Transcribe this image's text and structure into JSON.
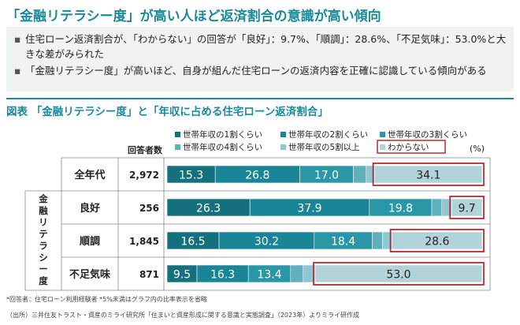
{
  "title": "「金融リテラシー度」が高い人ほど返済割合の意識が高い傾向",
  "bullets": [
    "住宅ローン返済割合が、「わからない」の回答が「良好」：9.7%、「順調」：28.6%、「不足気味」：53.0%と大きな差がみられた",
    "「金融リテラシー度」が高いほど、自身が組んだ住宅ローンの返済内容を正確に認識している傾向がある"
  ],
  "chart_title": "図表 「金融リテラシー度」と「年収に占める住宅ローン返済割合」",
  "footnote": "*回答者：住宅ローン利用経験者 *5%未満はグラフ内の比率表示を省略",
  "source": "（出所）三井住友トラスト・資産のミライ研究所「住まいと資産形成に関する意識と実態調査」（2023年）よりミライ研作成",
  "chart_data": {
    "type": "bar",
    "stacked": true,
    "orientation": "horizontal",
    "unit": "(%)",
    "respondents_header": "回答者数",
    "group_label": "金融リテラシー度",
    "categories": [
      "全年代",
      "良好",
      "順調",
      "不足気味"
    ],
    "respondents": [
      "2,972",
      "256",
      "1,845",
      "871"
    ],
    "series": [
      {
        "name": "世帯年収の1割くらい",
        "color": "#15707e",
        "values": [
          15.3,
          26.3,
          16.5,
          9.5
        ]
      },
      {
        "name": "世帯年収の2割くらい",
        "color": "#1a8596",
        "values": [
          26.8,
          37.9,
          30.2,
          16.3
        ]
      },
      {
        "name": "世帯年収の3割くらい",
        "color": "#2a97a7",
        "values": [
          17.0,
          19.8,
          18.4,
          13.4
        ]
      },
      {
        "name": "世帯年収の4割くらい",
        "color": "#5fb0bd",
        "values": [
          4.1,
          3.2,
          3.3,
          4.0
        ]
      },
      {
        "name": "世帯年収の5割以上",
        "color": "#8fc6cf",
        "values": [
          2.7,
          3.1,
          3.0,
          3.8
        ]
      },
      {
        "name": "わからない",
        "color": "#b3d3db",
        "values": [
          34.1,
          9.7,
          28.6,
          53.0
        ]
      }
    ],
    "label_threshold": 5,
    "highlight_series": "わからない",
    "highlight_color": "#c0282d",
    "xlim": [
      0,
      100
    ]
  }
}
